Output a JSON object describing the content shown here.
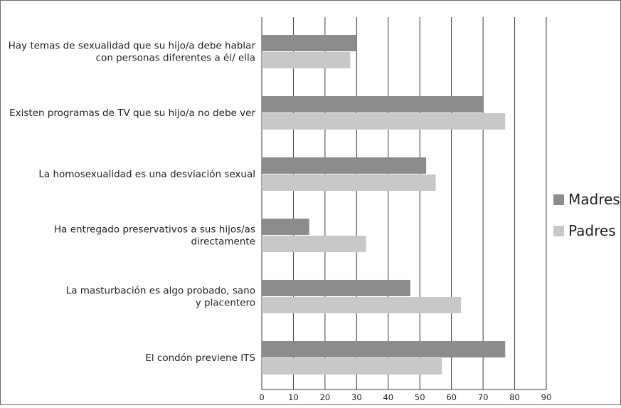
{
  "chart_data": {
    "type": "bar",
    "orientation": "horizontal",
    "categories": [
      [
        "Hay temas de sexualidad que su hijo/a debe hablar",
        "con  personas diferentes a él/ ella"
      ],
      [
        "Existen programas de TV que su hijo/a no debe ver"
      ],
      [
        "La homosexualidad es una desviación sexual"
      ],
      [
        "Ha entregado  preservativos a sus hijos/as",
        "directamente"
      ],
      [
        "La masturbación es algo probado, sano",
        "y placentero"
      ],
      [
        "El condón previene ITS"
      ]
    ],
    "series": [
      {
        "name": "Madres",
        "color": "#8c8c8c",
        "values": [
          30,
          70,
          52,
          15,
          47,
          77
        ]
      },
      {
        "name": "Padres",
        "color": "#c8c8c8",
        "values": [
          28,
          77,
          55,
          33,
          63,
          57
        ]
      }
    ],
    "xlim": [
      0,
      90
    ],
    "xticks": [
      "0",
      "10",
      "20",
      "30",
      "40",
      "50",
      "60",
      "70",
      "80",
      "90"
    ],
    "grid": "vertical",
    "legend": "right"
  }
}
